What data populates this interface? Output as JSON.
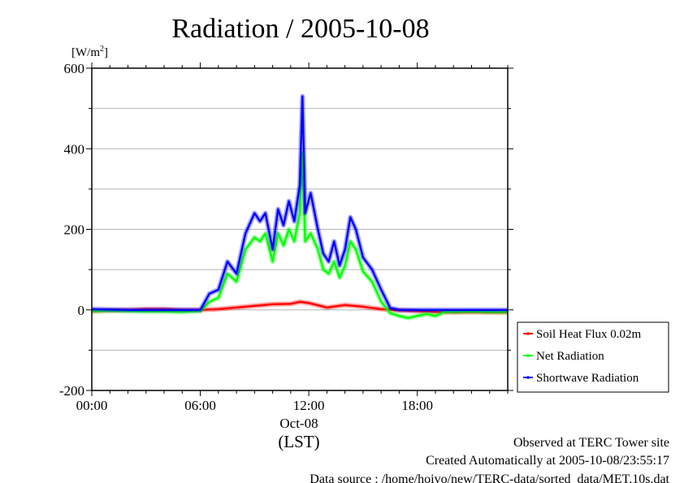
{
  "chart_data": {
    "type": "line",
    "title": "Radiation / 2005-10-08",
    "yunit": "[W/m",
    "yunit_sup": "2",
    "yunit_end": "]",
    "ylim": [
      -200,
      600
    ],
    "yticks": [
      -200,
      0,
      200,
      400,
      600
    ],
    "xlim": [
      0,
      23
    ],
    "xticks": [
      {
        "value": 0,
        "label": "00:00"
      },
      {
        "value": 6,
        "label": "06:00"
      },
      {
        "value": 12,
        "label": "12:00"
      },
      {
        "value": 18,
        "label": "18:00"
      }
    ],
    "xdate": "Oct-08",
    "xunit": "(LST)",
    "grid": "horizontal",
    "legend_position": "lower-right-outside",
    "series": [
      {
        "name": "Soil Heat Flux 0.02m",
        "color": "#ff0000",
        "x": [
          0,
          1,
          2,
          3,
          4,
          5,
          6,
          7,
          8,
          9,
          10,
          11,
          11.5,
          12,
          13,
          14,
          15,
          16,
          17,
          18,
          19,
          20,
          21,
          22,
          23
        ],
        "y": [
          -3,
          -1,
          0,
          2,
          2,
          0,
          0,
          2,
          6,
          10,
          14,
          15,
          20,
          17,
          6,
          12,
          8,
          2,
          -1,
          -3,
          -5,
          -6,
          -5,
          -6,
          -6
        ]
      },
      {
        "name": "Net Radiation",
        "color": "#00ff00",
        "x": [
          0,
          1,
          2,
          3,
          4,
          5,
          6,
          6.5,
          7,
          7.5,
          8,
          8.5,
          9,
          9.3,
          9.6,
          10,
          10.3,
          10.6,
          10.9,
          11.2,
          11.5,
          11.65,
          11.8,
          12.1,
          12.5,
          12.8,
          13.1,
          13.4,
          13.7,
          14,
          14.3,
          14.6,
          15,
          15.5,
          16,
          16.5,
          17,
          17.5,
          18,
          18.5,
          19,
          19.5,
          20,
          21,
          22,
          23
        ],
        "y": [
          -3,
          -2,
          -3,
          -4,
          -4,
          -5,
          -3,
          20,
          30,
          90,
          70,
          150,
          180,
          170,
          190,
          120,
          190,
          160,
          200,
          170,
          240,
          390,
          170,
          190,
          150,
          100,
          90,
          120,
          80,
          110,
          170,
          150,
          95,
          70,
          20,
          -8,
          -15,
          -20,
          -15,
          -10,
          -15,
          -5,
          -5,
          -4,
          -5,
          -5
        ]
      },
      {
        "name": "Shortwave Radiation",
        "color": "#0000ff",
        "x": [
          0,
          1,
          2,
          3,
          4,
          5,
          6,
          6.5,
          7,
          7.5,
          8,
          8.5,
          9,
          9.3,
          9.6,
          10,
          10.3,
          10.6,
          10.9,
          11.2,
          11.5,
          11.65,
          11.8,
          12.1,
          12.5,
          12.8,
          13.1,
          13.4,
          13.7,
          14,
          14.3,
          14.6,
          15,
          15.5,
          16,
          16.5,
          17,
          17.5,
          18,
          18.5,
          19,
          19.5,
          20,
          21,
          22,
          23
        ],
        "y": [
          2,
          1,
          0,
          0,
          0,
          0,
          0,
          40,
          50,
          120,
          90,
          190,
          240,
          220,
          240,
          150,
          250,
          210,
          270,
          220,
          310,
          530,
          240,
          290,
          200,
          140,
          120,
          170,
          110,
          150,
          230,
          200,
          130,
          100,
          50,
          5,
          0,
          0,
          0,
          0,
          0,
          0,
          0,
          0,
          0,
          0
        ]
      }
    ]
  },
  "footer": {
    "observed": "Observed at TERC Tower site",
    "created": "Created Automatically at 2005-10-08/23:55:17",
    "source": "Data source : /home/hoivo/new/TERC-data/sorted_data/MET.10s.dat"
  }
}
